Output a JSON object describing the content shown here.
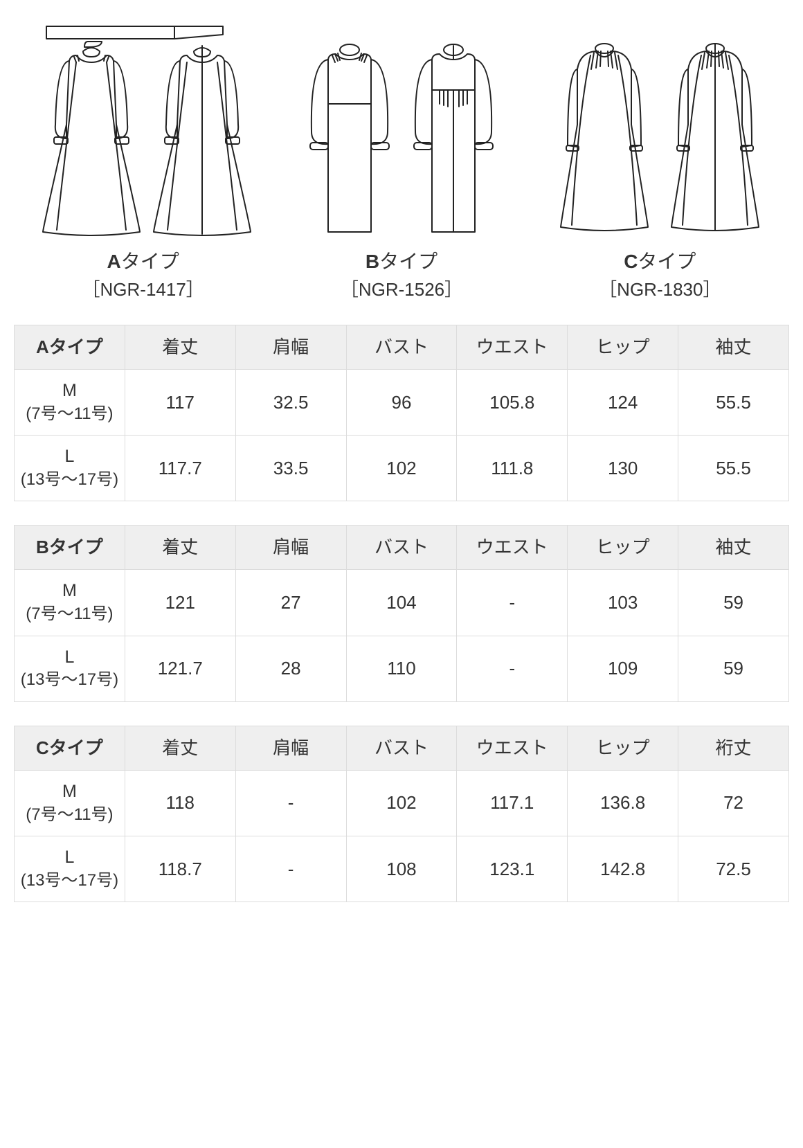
{
  "colors": {
    "stroke": "#222222",
    "bg": "#ffffff",
    "border": "#dcdcdc",
    "header_bg": "#efefef"
  },
  "types": [
    {
      "letter": "A",
      "suffix": "タイプ",
      "code": "［NGR-1417］"
    },
    {
      "letter": "B",
      "suffix": "タイプ",
      "code": "［NGR-1526］"
    },
    {
      "letter": "C",
      "suffix": "タイプ",
      "code": "［NGR-1830］"
    }
  ],
  "tables": [
    {
      "title": "Aタイプ",
      "headers": [
        "着丈",
        "肩幅",
        "バスト",
        "ウエスト",
        "ヒップ",
        "袖丈"
      ],
      "rows": [
        {
          "size_main": "M",
          "size_sub": "(7号～11号)",
          "vals": [
            "117",
            "32.5",
            "96",
            "105.8",
            "124",
            "55.5"
          ]
        },
        {
          "size_main": "L",
          "size_sub": "(13号～17号)",
          "vals": [
            "117.7",
            "33.5",
            "102",
            "111.8",
            "130",
            "55.5"
          ]
        }
      ]
    },
    {
      "title": "Bタイプ",
      "headers": [
        "着丈",
        "肩幅",
        "バスト",
        "ウエスト",
        "ヒップ",
        "袖丈"
      ],
      "rows": [
        {
          "size_main": "M",
          "size_sub": "(7号～11号)",
          "vals": [
            "121",
            "27",
            "104",
            "-",
            "103",
            "59"
          ]
        },
        {
          "size_main": "L",
          "size_sub": "(13号～17号)",
          "vals": [
            "121.7",
            "28",
            "110",
            "-",
            "109",
            "59"
          ]
        }
      ]
    },
    {
      "title": "Cタイプ",
      "headers": [
        "着丈",
        "肩幅",
        "バスト",
        "ウエスト",
        "ヒップ",
        "裄丈"
      ],
      "rows": [
        {
          "size_main": "M",
          "size_sub": "(7号～11号)",
          "vals": [
            "118",
            "-",
            "102",
            "117.1",
            "136.8",
            "72"
          ]
        },
        {
          "size_main": "L",
          "size_sub": "(13号～17号)",
          "vals": [
            "118.7",
            "-",
            "108",
            "123.1",
            "142.8",
            "72.5"
          ]
        }
      ]
    }
  ]
}
